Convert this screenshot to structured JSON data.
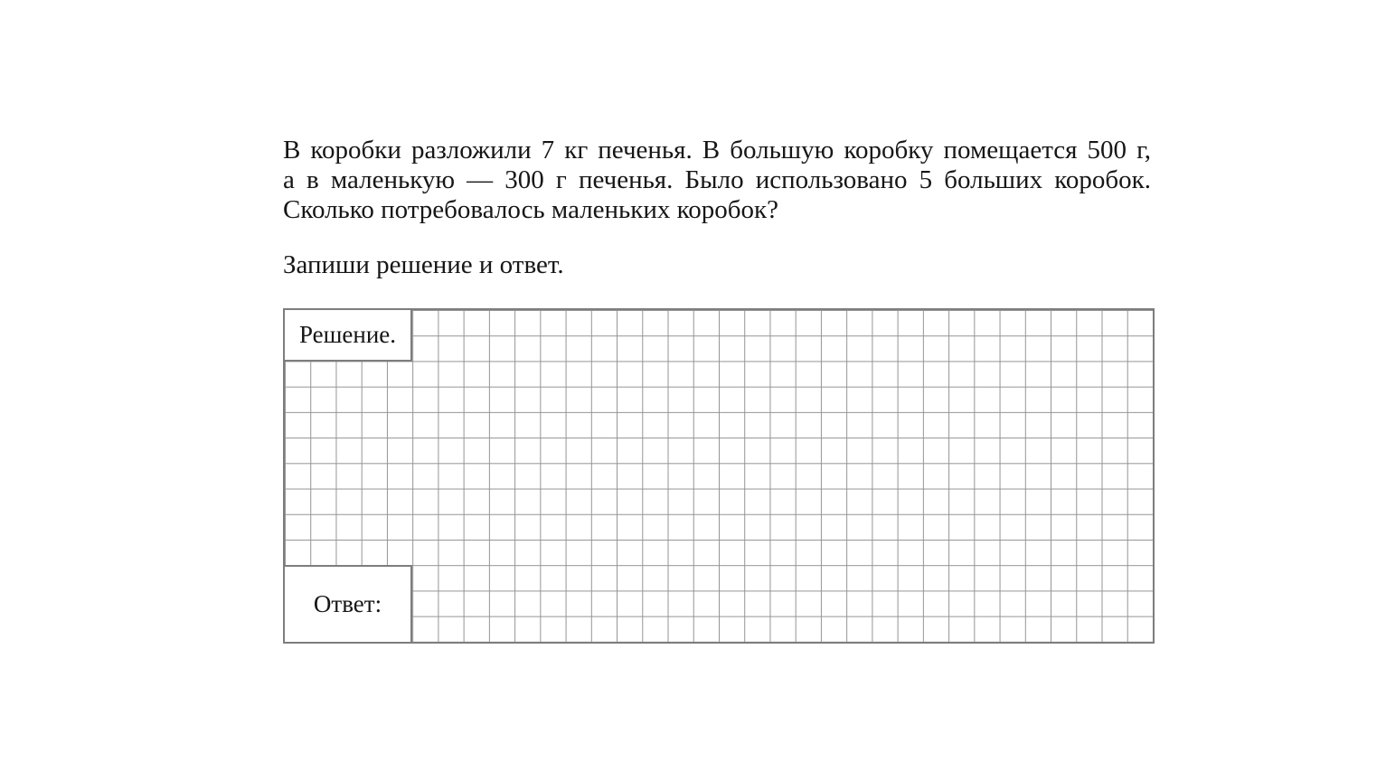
{
  "problem": {
    "lines": [
      "В коробки разложили 7 кг печенья. В большую коробку помещается 500 г,",
      "а в маленькую — 300 г печенья. Было использовано 5 больших коробок.",
      "Сколько потребовалось маленьких коробок?"
    ],
    "instruction": "Запиши решение и ответ."
  },
  "worksheet": {
    "solution_label": "Решение.",
    "answer_label": "Ответ:",
    "grid": {
      "columns": 34,
      "rows": 13,
      "line_color": "#949494",
      "border_color": "#7d7d7d",
      "background_color": "#ffffff"
    }
  }
}
